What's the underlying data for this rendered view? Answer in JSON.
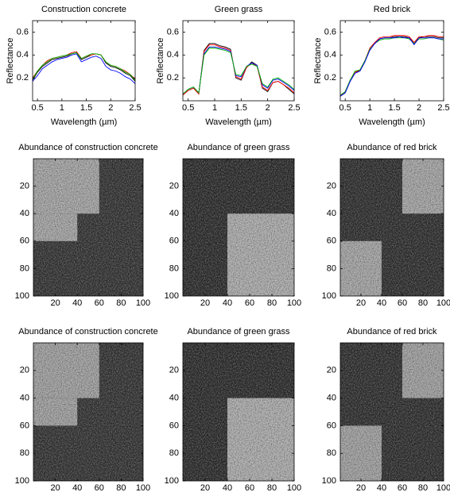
{
  "chart_data": [
    {
      "type": "line",
      "title": "Construction concrete",
      "xlabel": "Wavelength (µm)",
      "ylabel": "Reflectance",
      "x": [
        0.4,
        0.5,
        0.6,
        0.7,
        0.8,
        0.9,
        1.0,
        1.1,
        1.2,
        1.3,
        1.4,
        1.5,
        1.6,
        1.7,
        1.8,
        1.9,
        2.0,
        2.1,
        2.2,
        2.3,
        2.4,
        2.5
      ],
      "xlim": [
        0.4,
        2.5
      ],
      "xticks": [
        0.5,
        1,
        1.5,
        2,
        2.5
      ],
      "ylim": [
        0,
        0.7
      ],
      "yticks": [
        0.2,
        0.4,
        0.6
      ],
      "series": [
        {
          "color": "#000000",
          "values": [
            0.18,
            0.25,
            0.3,
            0.33,
            0.36,
            0.37,
            0.38,
            0.39,
            0.41,
            0.42,
            0.36,
            0.38,
            0.4,
            0.41,
            0.4,
            0.33,
            0.3,
            0.29,
            0.27,
            0.24,
            0.22,
            0.17
          ]
        },
        {
          "color": "#ff0000",
          "values": [
            0.2,
            0.26,
            0.31,
            0.35,
            0.37,
            0.38,
            0.39,
            0.4,
            0.42,
            0.43,
            0.37,
            0.39,
            0.4,
            0.41,
            0.4,
            0.34,
            0.31,
            0.3,
            0.28,
            0.26,
            0.23,
            0.19
          ]
        },
        {
          "color": "#00bb00",
          "values": [
            0.19,
            0.26,
            0.31,
            0.34,
            0.37,
            0.38,
            0.39,
            0.4,
            0.41,
            0.42,
            0.37,
            0.39,
            0.41,
            0.41,
            0.4,
            0.34,
            0.31,
            0.3,
            0.28,
            0.25,
            0.23,
            0.18
          ]
        },
        {
          "color": "#0000ff",
          "values": [
            0.17,
            0.22,
            0.28,
            0.31,
            0.34,
            0.36,
            0.37,
            0.38,
            0.4,
            0.41,
            0.34,
            0.36,
            0.38,
            0.39,
            0.37,
            0.3,
            0.27,
            0.26,
            0.24,
            0.21,
            0.19,
            0.15
          ]
        }
      ]
    },
    {
      "type": "line",
      "title": "Green grass",
      "xlabel": "Wavelength (µm)",
      "ylabel": "Reflectance",
      "x": [
        0.4,
        0.5,
        0.6,
        0.7,
        0.8,
        0.9,
        1.0,
        1.1,
        1.2,
        1.3,
        1.4,
        1.5,
        1.6,
        1.7,
        1.8,
        1.9,
        2.0,
        2.1,
        2.2,
        2.3,
        2.4,
        2.5
      ],
      "xlim": [
        0.4,
        2.5
      ],
      "xticks": [
        0.5,
        1,
        1.5,
        2,
        2.5
      ],
      "ylim": [
        0,
        0.7
      ],
      "yticks": [
        0.2,
        0.4,
        0.6
      ],
      "series": [
        {
          "color": "#000000",
          "values": [
            0.05,
            0.09,
            0.11,
            0.06,
            0.44,
            0.5,
            0.5,
            0.48,
            0.47,
            0.45,
            0.2,
            0.18,
            0.29,
            0.34,
            0.31,
            0.11,
            0.08,
            0.16,
            0.17,
            0.14,
            0.1,
            0.06
          ]
        },
        {
          "color": "#ff0000",
          "values": [
            0.05,
            0.09,
            0.11,
            0.06,
            0.43,
            0.49,
            0.49,
            0.47,
            0.46,
            0.44,
            0.21,
            0.19,
            0.29,
            0.33,
            0.3,
            0.12,
            0.09,
            0.16,
            0.17,
            0.14,
            0.11,
            0.07
          ]
        },
        {
          "color": "#0000ff",
          "values": [
            0.06,
            0.1,
            0.12,
            0.07,
            0.41,
            0.47,
            0.47,
            0.46,
            0.45,
            0.43,
            0.22,
            0.21,
            0.3,
            0.33,
            0.31,
            0.14,
            0.11,
            0.18,
            0.19,
            0.16,
            0.13,
            0.09
          ]
        },
        {
          "color": "#00bb00",
          "values": [
            0.06,
            0.1,
            0.12,
            0.07,
            0.4,
            0.46,
            0.46,
            0.45,
            0.44,
            0.42,
            0.23,
            0.22,
            0.3,
            0.32,
            0.3,
            0.15,
            0.12,
            0.19,
            0.2,
            0.17,
            0.14,
            0.1
          ]
        }
      ]
    },
    {
      "type": "line",
      "title": "Red brick",
      "xlabel": "Wavelength (µm)",
      "ylabel": "Reflectance",
      "x": [
        0.4,
        0.5,
        0.6,
        0.7,
        0.8,
        0.9,
        1.0,
        1.1,
        1.2,
        1.3,
        1.4,
        1.5,
        1.6,
        1.7,
        1.8,
        1.9,
        2.0,
        2.1,
        2.2,
        2.3,
        2.4,
        2.5
      ],
      "xlim": [
        0.4,
        2.5
      ],
      "xticks": [
        0.5,
        1,
        1.5,
        2,
        2.5
      ],
      "ylim": [
        0,
        0.7
      ],
      "yticks": [
        0.2,
        0.4,
        0.6
      ],
      "series": [
        {
          "color": "#000000",
          "values": [
            0.04,
            0.07,
            0.17,
            0.25,
            0.26,
            0.34,
            0.45,
            0.5,
            0.54,
            0.55,
            0.55,
            0.56,
            0.56,
            0.56,
            0.55,
            0.5,
            0.55,
            0.56,
            0.56,
            0.56,
            0.55,
            0.55
          ]
        },
        {
          "color": "#ff0000",
          "values": [
            0.04,
            0.08,
            0.18,
            0.25,
            0.27,
            0.35,
            0.46,
            0.51,
            0.55,
            0.56,
            0.56,
            0.57,
            0.57,
            0.57,
            0.56,
            0.51,
            0.56,
            0.56,
            0.57,
            0.57,
            0.56,
            0.56
          ]
        },
        {
          "color": "#00bb00",
          "values": [
            0.05,
            0.08,
            0.18,
            0.26,
            0.27,
            0.35,
            0.45,
            0.5,
            0.53,
            0.54,
            0.54,
            0.55,
            0.55,
            0.55,
            0.54,
            0.5,
            0.54,
            0.54,
            0.55,
            0.55,
            0.54,
            0.53
          ]
        },
        {
          "color": "#0000ff",
          "values": [
            0.04,
            0.07,
            0.17,
            0.24,
            0.26,
            0.34,
            0.44,
            0.5,
            0.54,
            0.55,
            0.55,
            0.55,
            0.56,
            0.55,
            0.55,
            0.49,
            0.55,
            0.55,
            0.55,
            0.55,
            0.54,
            0.54
          ]
        }
      ]
    },
    {
      "type": "image",
      "title": "Abundance of construction concrete",
      "xlim": [
        0,
        100
      ],
      "ylim": [
        0,
        100
      ],
      "y_reversed": true,
      "xticks": [
        20,
        40,
        60,
        80,
        100
      ],
      "yticks": [
        20,
        40,
        60,
        80,
        100
      ],
      "background": 0.2,
      "regions": [
        {
          "x": [
            0,
            60
          ],
          "y": [
            0,
            40
          ],
          "value": 0.65
        },
        {
          "x": [
            0,
            40
          ],
          "y": [
            40,
            60
          ],
          "value": 0.65
        }
      ]
    },
    {
      "type": "image",
      "title": "Abundance of green grass",
      "xlim": [
        0,
        100
      ],
      "ylim": [
        0,
        100
      ],
      "y_reversed": true,
      "xticks": [
        20,
        40,
        60,
        80,
        100
      ],
      "yticks": [
        20,
        40,
        60,
        80,
        100
      ],
      "background": 0.17,
      "regions": [
        {
          "x": [
            40,
            100
          ],
          "y": [
            40,
            100
          ],
          "value": 0.68
        }
      ]
    },
    {
      "type": "image",
      "title": "Abundance of red brick",
      "xlim": [
        0,
        100
      ],
      "ylim": [
        0,
        100
      ],
      "y_reversed": true,
      "xticks": [
        20,
        40,
        60,
        80,
        100
      ],
      "yticks": [
        20,
        40,
        60,
        80,
        100
      ],
      "background": 0.18,
      "regions": [
        {
          "x": [
            60,
            100
          ],
          "y": [
            0,
            40
          ],
          "value": 0.65
        },
        {
          "x": [
            0,
            40
          ],
          "y": [
            60,
            100
          ],
          "value": 0.65
        }
      ]
    },
    {
      "type": "image",
      "title": "Abundance of construction concrete",
      "xlim": [
        0,
        100
      ],
      "ylim": [
        0,
        100
      ],
      "y_reversed": true,
      "xticks": [
        20,
        40,
        60,
        80,
        100
      ],
      "yticks": [
        20,
        40,
        60,
        80,
        100
      ],
      "background": 0.2,
      "regions": [
        {
          "x": [
            0,
            60
          ],
          "y": [
            0,
            40
          ],
          "value": 0.63
        },
        {
          "x": [
            0,
            40
          ],
          "y": [
            40,
            60
          ],
          "value": 0.63
        }
      ]
    },
    {
      "type": "image",
      "title": "Abundance of green grass",
      "xlim": [
        0,
        100
      ],
      "ylim": [
        0,
        100
      ],
      "y_reversed": true,
      "xticks": [
        20,
        40,
        60,
        80,
        100
      ],
      "yticks": [
        20,
        40,
        60,
        80,
        100
      ],
      "background": 0.17,
      "regions": [
        {
          "x": [
            40,
            100
          ],
          "y": [
            40,
            100
          ],
          "value": 0.68
        }
      ]
    },
    {
      "type": "image",
      "title": "Abundance of red brick",
      "xlim": [
        0,
        100
      ],
      "ylim": [
        0,
        100
      ],
      "y_reversed": true,
      "xticks": [
        20,
        40,
        60,
        80,
        100
      ],
      "yticks": [
        20,
        40,
        60,
        80,
        100
      ],
      "background": 0.18,
      "regions": [
        {
          "x": [
            60,
            100
          ],
          "y": [
            0,
            40
          ],
          "value": 0.63
        },
        {
          "x": [
            0,
            40
          ],
          "y": [
            60,
            100
          ],
          "value": 0.63
        }
      ]
    }
  ]
}
